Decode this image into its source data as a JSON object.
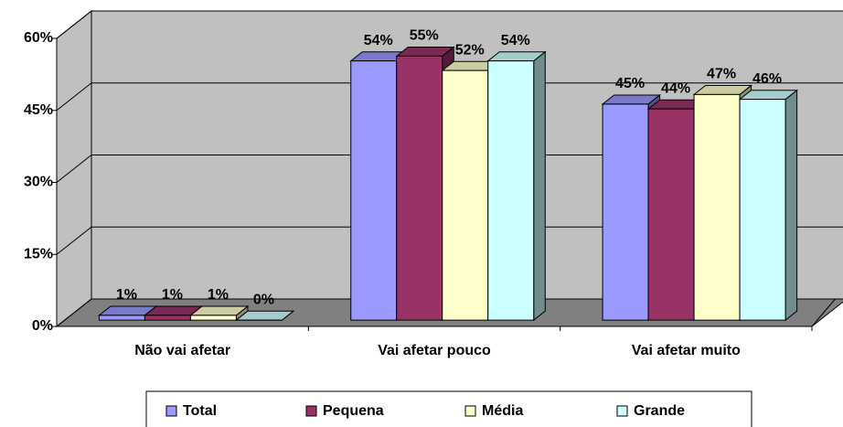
{
  "chart_data": {
    "type": "bar3d",
    "categories": [
      "Não vai afetar",
      "Vai afetar pouco",
      "Vai afetar muito"
    ],
    "series": [
      {
        "name": "Total",
        "color": "#9999ff",
        "values": [
          1,
          54,
          45
        ],
        "value_labels": [
          "1%",
          "54%",
          "45%"
        ]
      },
      {
        "name": "Pequena",
        "color": "#993366",
        "values": [
          1,
          55,
          44
        ],
        "value_labels": [
          "1%",
          "55%",
          "44%"
        ]
      },
      {
        "name": "Média",
        "color": "#ffffcc",
        "values": [
          1,
          52,
          47
        ],
        "value_labels": [
          "1%",
          "52%",
          "47%"
        ]
      },
      {
        "name": "Grande",
        "color": "#ccffff",
        "values": [
          0,
          54,
          46
        ],
        "value_labels": [
          "0%",
          "54%",
          "46%"
        ]
      }
    ],
    "ylim": [
      0,
      60
    ],
    "yticks": [
      {
        "value": 0,
        "label": "0%"
      },
      {
        "value": 15,
        "label": "15%"
      },
      {
        "value": 30,
        "label": "30%"
      },
      {
        "value": 45,
        "label": "45%"
      },
      {
        "value": 60,
        "label": "60%"
      }
    ],
    "grid": true,
    "legend": "bottom"
  }
}
